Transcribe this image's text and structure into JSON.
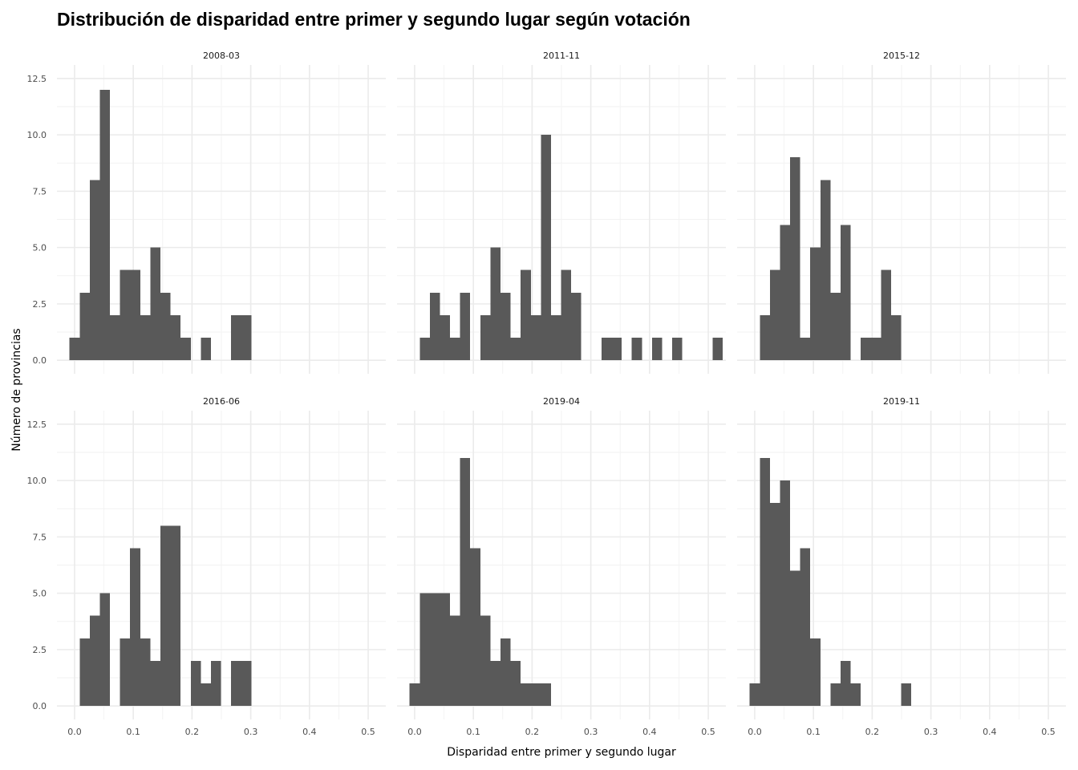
{
  "chart_data": {
    "type": "histogram",
    "title": "Distribución de disparidad entre primer y segundo lugar según votación",
    "xlabel": "Disparidad entre primer y segundo lugar",
    "ylabel": "Número de provincias",
    "xlim": [
      -0.03,
      0.53
    ],
    "ylim": [
      -0.6,
      13.1
    ],
    "x_ticks": [
      0.0,
      0.1,
      0.2,
      0.3,
      0.4,
      0.5
    ],
    "x_tick_labels": [
      "0.0",
      "0.1",
      "0.2",
      "0.3",
      "0.4",
      "0.5"
    ],
    "y_ticks": [
      0,
      2.5,
      5,
      7.5,
      10,
      12.5
    ],
    "y_tick_labels": [
      "0.0",
      "2.5",
      "5.0",
      "7.5",
      "10.0",
      "12.5"
    ],
    "bin_width": 0.0172,
    "first_bin_center": 0.0,
    "bar_color": "#595959",
    "grid": true,
    "legend": "none",
    "panels": [
      {
        "name": "2008-03",
        "counts": [
          1,
          3,
          8,
          12,
          2,
          4,
          4,
          2,
          5,
          3,
          2,
          1,
          0,
          1,
          0,
          0,
          2,
          2
        ]
      },
      {
        "name": "2011-11",
        "counts": [
          0,
          1,
          3,
          2,
          1,
          3,
          0,
          2,
          5,
          3,
          1,
          4,
          2,
          10,
          2,
          4,
          3,
          0,
          0,
          1,
          1,
          0,
          1,
          0,
          1,
          0,
          1,
          0,
          0,
          0,
          1
        ]
      },
      {
        "name": "2015-12",
        "counts": [
          0,
          2,
          4,
          6,
          9,
          1,
          5,
          8,
          3,
          6,
          0,
          1,
          1,
          4,
          2
        ]
      },
      {
        "name": "2016-06",
        "counts": [
          0,
          3,
          4,
          5,
          0,
          3,
          7,
          3,
          2,
          8,
          8,
          0,
          2,
          1,
          2,
          0,
          2,
          2
        ]
      },
      {
        "name": "2019-04",
        "counts": [
          1,
          5,
          5,
          5,
          4,
          11,
          7,
          4,
          2,
          3,
          2,
          1,
          1,
          1
        ]
      },
      {
        "name": "2019-11",
        "counts": [
          1,
          11,
          9,
          10,
          6,
          7,
          3,
          0,
          1,
          2,
          1,
          0,
          0,
          0,
          0,
          1
        ]
      }
    ]
  }
}
